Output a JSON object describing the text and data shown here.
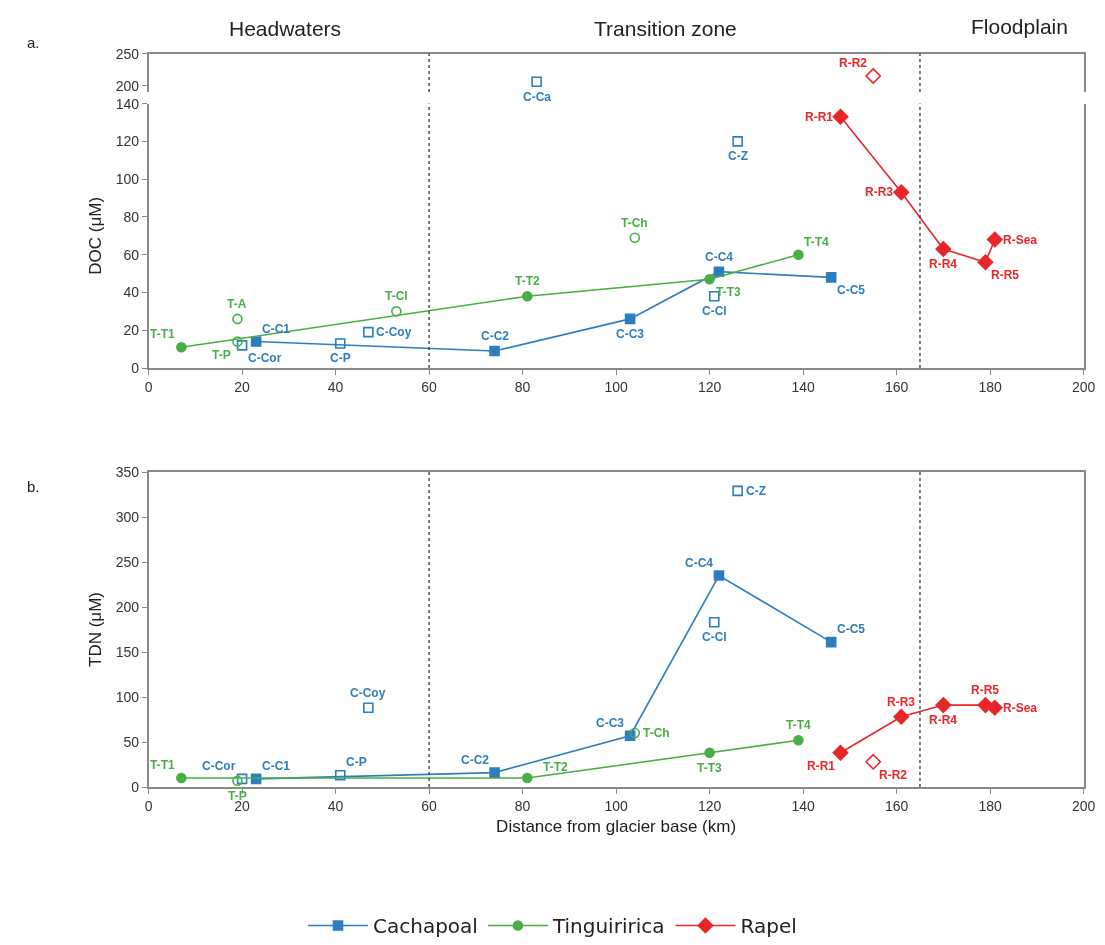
{
  "chart_data": [
    {
      "type": "line",
      "annotations": [
        "a.",
        "Headwaters",
        "Transition zone",
        "Floodplain",
        {
          "text": "C-Ca",
          "x": 83,
          "y": 206
        },
        {
          "text": "R-R2",
          "x": 155,
          "y": 215
        }
      ],
      "xlim": [
        0,
        200
      ],
      "ylim": [
        190,
        250
      ],
      "yticks": [
        200,
        250
      ],
      "tick_labels": "y",
      "grid": false,
      "line_style": "solid",
      "ref_lines": [
        {
          "axis": "x",
          "value": 60,
          "line_style": "dotted",
          "color": "#333333"
        },
        {
          "axis": "x",
          "value": 165,
          "line_style": "dotted",
          "color": "#333333"
        }
      ],
      "series": [
        {
          "type": "scatter",
          "color": "#2e7ebf",
          "marker": "square",
          "x": [
            83
          ],
          "values": [
            206
          ]
        },
        {
          "type": "scatter",
          "color": "#e8262a",
          "marker": "diamond",
          "x": [
            155
          ],
          "values": [
            215
          ]
        }
      ]
    },
    {
      "type": "line",
      "ylabel": "DOC (μM)",
      "annotations": [
        {
          "text": "T-T1",
          "x": 7,
          "y": 11
        },
        {
          "text": "T-A",
          "x": 19,
          "y": 26
        },
        {
          "text": "T-P",
          "x": 19,
          "y": 14
        },
        {
          "text": "C-Cor",
          "x": 20,
          "y": 12
        },
        {
          "text": "C-C1",
          "x": 23,
          "y": 14
        },
        {
          "text": "C-P",
          "x": 41,
          "y": 13
        },
        {
          "text": "C-Coy",
          "x": 47,
          "y": 19
        },
        {
          "text": "T-Cl",
          "x": 53,
          "y": 30
        },
        {
          "text": "C-C2",
          "x": 74,
          "y": 9
        },
        {
          "text": "T-T2",
          "x": 81,
          "y": 38
        },
        {
          "text": "C-C3",
          "x": 103,
          "y": 26
        },
        {
          "text": "T-Ch",
          "x": 104,
          "y": 69
        },
        {
          "text": "C-C4",
          "x": 122,
          "y": 51
        },
        {
          "text": "T-T3",
          "x": 120,
          "y": 47
        },
        {
          "text": "C-Cl",
          "x": 121,
          "y": 38
        },
        {
          "text": "C-Z",
          "x": 126,
          "y": 120
        },
        {
          "text": "T-T4",
          "x": 139,
          "y": 60
        },
        {
          "text": "C-C5",
          "x": 146,
          "y": 48
        },
        {
          "text": "R-R1",
          "x": 148,
          "y": 133
        },
        {
          "text": "R-R3",
          "x": 161,
          "y": 93
        },
        {
          "text": "R-R4",
          "x": 170,
          "y": 63
        },
        {
          "text": "R-R5",
          "x": 179,
          "y": 56
        },
        {
          "text": "R-Sea",
          "x": 181,
          "y": 68
        }
      ],
      "xlim": [
        0,
        200
      ],
      "xticks": [
        0,
        20,
        40,
        60,
        80,
        100,
        120,
        140,
        160,
        180,
        200
      ],
      "ylim": [
        0,
        140
      ],
      "yticks": [
        0,
        20,
        40,
        60,
        80,
        100,
        120,
        140
      ],
      "grid": false,
      "line_style": "solid",
      "ref_lines": [
        {
          "axis": "x",
          "value": 60,
          "line_style": "dotted",
          "color": "#333333"
        },
        {
          "axis": "x",
          "value": 165,
          "line_style": "dotted",
          "color": "#333333"
        }
      ],
      "series": [
        {
          "type": "line",
          "color": "#2e7ebf",
          "marker": "square",
          "x": [
            23,
            74,
            103,
            122,
            146
          ],
          "values": [
            14,
            9,
            26,
            51,
            48
          ]
        },
        {
          "type": "scatter",
          "color": "#2e7ebf",
          "marker": "square",
          "x": [
            20,
            41,
            47,
            121,
            126
          ],
          "values": [
            12,
            13,
            19,
            38,
            120
          ]
        },
        {
          "type": "line",
          "color": "#4aad45",
          "marker": "circle",
          "x": [
            7,
            81,
            120,
            139
          ],
          "values": [
            11,
            38,
            47,
            60
          ]
        },
        {
          "type": "scatter",
          "color": "#4aad45",
          "marker": "circle",
          "x": [
            19,
            19,
            53,
            104
          ],
          "values": [
            26,
            14,
            30,
            69
          ]
        },
        {
          "type": "line",
          "color": "#e8262a",
          "marker": "diamond",
          "x": [
            148,
            161,
            170,
            179,
            181
          ],
          "values": [
            133,
            93,
            63,
            56,
            68
          ]
        }
      ]
    },
    {
      "type": "line",
      "xlabel": "Distance from glacier base (km)",
      "ylabel": "TDN (μM)",
      "annotations": [
        "b.",
        {
          "text": "T-T1",
          "x": 7,
          "y": 10
        },
        {
          "text": "C-Cor",
          "x": 20,
          "y": 9
        },
        {
          "text": "T-P",
          "x": 19,
          "y": 7
        },
        {
          "text": "C-C1",
          "x": 23,
          "y": 9
        },
        {
          "text": "C-P",
          "x": 41,
          "y": 13
        },
        {
          "text": "C-Coy",
          "x": 47,
          "y": 88
        },
        {
          "text": "C-C2",
          "x": 74,
          "y": 16
        },
        {
          "text": "T-T2",
          "x": 81,
          "y": 10
        },
        {
          "text": "C-C3",
          "x": 103,
          "y": 57
        },
        {
          "text": "T-Ch",
          "x": 104,
          "y": 60
        },
        {
          "text": "C-C4",
          "x": 122,
          "y": 235
        },
        {
          "text": "C-Cl",
          "x": 121,
          "y": 183
        },
        {
          "text": "C-Z",
          "x": 126,
          "y": 329
        },
        {
          "text": "C-C5",
          "x": 146,
          "y": 161
        },
        {
          "text": "T-T3",
          "x": 120,
          "y": 38
        },
        {
          "text": "T-T4",
          "x": 139,
          "y": 52
        },
        {
          "text": "R-R1",
          "x": 148,
          "y": 38
        },
        {
          "text": "R-R2",
          "x": 155,
          "y": 28
        },
        {
          "text": "R-R3",
          "x": 161,
          "y": 78
        },
        {
          "text": "R-R4",
          "x": 170,
          "y": 91
        },
        {
          "text": "R-R5",
          "x": 179,
          "y": 91
        },
        {
          "text": "R-Sea",
          "x": 181,
          "y": 88
        }
      ],
      "xlim": [
        0,
        200
      ],
      "xticks": [
        0,
        20,
        40,
        60,
        80,
        100,
        120,
        140,
        160,
        180,
        200
      ],
      "ylim": [
        0,
        350
      ],
      "yticks": [
        0,
        50,
        100,
        150,
        200,
        250,
        300,
        350
      ],
      "grid": false,
      "legend": "bottom",
      "line_style": "solid",
      "ref_lines": [
        {
          "axis": "x",
          "value": 60,
          "line_style": "dotted",
          "color": "#333333"
        },
        {
          "axis": "x",
          "value": 165,
          "line_style": "dotted",
          "color": "#333333"
        }
      ],
      "series": [
        {
          "name": "Cachapoal",
          "type": "line",
          "color": "#2e7ebf",
          "marker": "square",
          "x": [
            23,
            74,
            103,
            122,
            146
          ],
          "values": [
            9,
            16,
            57,
            235,
            161
          ]
        },
        {
          "type": "scatter",
          "color": "#2e7ebf",
          "marker": "square",
          "x": [
            20,
            41,
            47,
            121,
            126
          ],
          "values": [
            9,
            13,
            88,
            183,
            329
          ]
        },
        {
          "name": "Tinguiririca",
          "type": "line",
          "color": "#4aad45",
          "marker": "circle",
          "x": [
            7,
            81,
            120,
            139
          ],
          "values": [
            10,
            10,
            38,
            52
          ]
        },
        {
          "type": "scatter",
          "color": "#4aad45",
          "marker": "circle",
          "x": [
            19,
            104
          ],
          "values": [
            7,
            60
          ]
        },
        {
          "name": "Rapel",
          "type": "line",
          "color": "#e8262a",
          "marker": "diamond",
          "x": [
            148,
            161,
            170,
            179,
            181
          ],
          "values": [
            38,
            78,
            91,
            91,
            88
          ]
        },
        {
          "type": "scatter",
          "color": "#e8262a",
          "marker": "diamond",
          "x": [
            155
          ],
          "values": [
            28
          ]
        }
      ]
    }
  ]
}
